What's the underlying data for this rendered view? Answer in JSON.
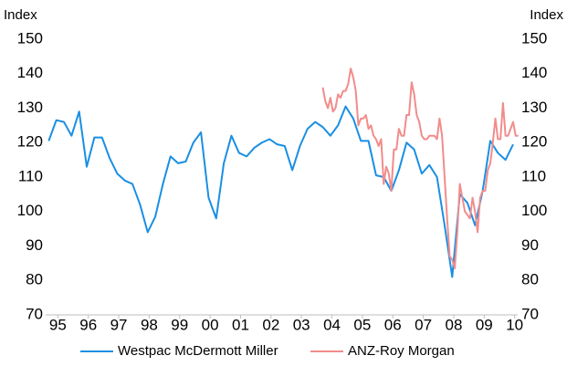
{
  "chart_data": {
    "type": "line",
    "ylabel": "Index",
    "y2label": "Index",
    "xlim": [
      1995.1,
      2010.6
    ],
    "xticks": [
      {
        "value": 1995.5,
        "label": "95"
      },
      {
        "value": 1996.5,
        "label": "96"
      },
      {
        "value": 1997.5,
        "label": "97"
      },
      {
        "value": 1998.5,
        "label": "98"
      },
      {
        "value": 1999.5,
        "label": "99"
      },
      {
        "value": 2000.5,
        "label": "00"
      },
      {
        "value": 2001.5,
        "label": "01"
      },
      {
        "value": 2002.5,
        "label": "02"
      },
      {
        "value": 2003.5,
        "label": "03"
      },
      {
        "value": 2004.5,
        "label": "04"
      },
      {
        "value": 2005.5,
        "label": "05"
      },
      {
        "value": 2006.5,
        "label": "06"
      },
      {
        "value": 2007.5,
        "label": "07"
      },
      {
        "value": 2008.5,
        "label": "08"
      },
      {
        "value": 2009.5,
        "label": "09"
      },
      {
        "value": 2010.5,
        "label": "10"
      }
    ],
    "ylim": [
      70,
      150
    ],
    "yticks": [
      70,
      80,
      90,
      100,
      110,
      120,
      130,
      140,
      150
    ],
    "y2lim": [
      70,
      150
    ],
    "y2ticks": [
      70,
      80,
      90,
      100,
      110,
      120,
      130,
      140,
      150
    ],
    "legend": "bottom",
    "series": [
      {
        "name": "Westpac McDermott Miller",
        "color": "#1a8fe3",
        "x": [
          1995.2,
          1995.45,
          1995.7,
          1995.95,
          1996.2,
          1996.45,
          1996.7,
          1996.95,
          1997.2,
          1997.45,
          1997.7,
          1997.95,
          1998.2,
          1998.45,
          1998.7,
          1998.95,
          1999.2,
          1999.45,
          1999.7,
          1999.95,
          2000.2,
          2000.45,
          2000.7,
          2000.95,
          2001.2,
          2001.45,
          2001.7,
          2001.95,
          2002.2,
          2002.45,
          2002.7,
          2002.95,
          2003.2,
          2003.45,
          2003.7,
          2003.95,
          2004.2,
          2004.45,
          2004.7,
          2004.95,
          2005.2,
          2005.45,
          2005.7,
          2005.95,
          2006.2,
          2006.45,
          2006.7,
          2006.95,
          2007.2,
          2007.45,
          2007.7,
          2007.95,
          2008.2,
          2008.45,
          2008.7,
          2008.95,
          2009.2,
          2009.45,
          2009.7,
          2009.95,
          2010.2,
          2010.45
        ],
        "values": [
          120.5,
          126.5,
          126,
          122,
          129,
          113,
          121.5,
          121.5,
          115.5,
          111,
          109,
          108,
          102,
          94,
          98.5,
          108,
          116,
          114,
          114.5,
          120,
          123,
          104,
          98,
          114,
          122,
          117,
          116,
          118.5,
          120,
          121,
          119.5,
          119,
          112,
          119,
          124,
          126,
          124.5,
          122,
          125,
          130.5,
          127,
          120.5,
          120.5,
          110.5,
          110,
          106,
          112,
          120,
          118,
          111,
          113.5,
          110,
          96,
          81,
          105,
          102.5,
          96,
          106,
          120.5,
          117,
          115,
          119.5
        ]
      },
      {
        "name": "ANZ-Roy Morgan",
        "color": "#f28c8c",
        "axis": "y2",
        "x": [
          2004.2,
          2004.283,
          2004.367,
          2004.45,
          2004.533,
          2004.617,
          2004.7,
          2004.783,
          2004.867,
          2004.95,
          2005.033,
          2005.117,
          2005.2,
          2005.283,
          2005.367,
          2005.45,
          2005.533,
          2005.617,
          2005.7,
          2005.783,
          2005.867,
          2005.95,
          2006.033,
          2006.117,
          2006.2,
          2006.283,
          2006.367,
          2006.45,
          2006.533,
          2006.617,
          2006.7,
          2006.783,
          2006.867,
          2006.95,
          2007.033,
          2007.117,
          2007.2,
          2007.283,
          2007.367,
          2007.45,
          2007.533,
          2007.617,
          2007.7,
          2007.783,
          2007.867,
          2007.95,
          2008.033,
          2008.117,
          2008.2,
          2008.283,
          2008.367,
          2008.45,
          2008.533,
          2008.617,
          2008.7,
          2008.783,
          2008.867,
          2008.95,
          2009.033,
          2009.117,
          2009.2,
          2009.283,
          2009.367,
          2009.45,
          2009.533,
          2009.617,
          2009.7,
          2009.783,
          2009.867,
          2009.95,
          2010.033,
          2010.117,
          2010.2,
          2010.283,
          2010.367,
          2010.45,
          2010.533,
          2010.617
        ],
        "values": [
          136,
          132,
          130,
          133,
          129,
          130,
          134,
          133,
          135,
          135,
          137,
          141.5,
          139,
          135,
          125,
          127,
          127,
          128,
          124,
          125,
          122,
          121,
          119,
          121,
          108,
          113,
          111,
          106,
          118,
          118,
          124,
          122,
          122,
          128,
          128,
          137.5,
          134,
          128,
          126,
          122,
          121,
          121,
          122,
          122,
          122,
          121,
          127,
          122,
          110,
          98,
          87,
          86,
          83.5,
          94,
          108,
          104,
          100,
          99,
          98,
          104,
          100,
          94,
          104,
          106,
          106,
          112,
          114,
          120,
          127,
          121,
          121,
          131.5,
          122,
          122,
          124,
          126,
          122,
          122
        ]
      }
    ]
  }
}
